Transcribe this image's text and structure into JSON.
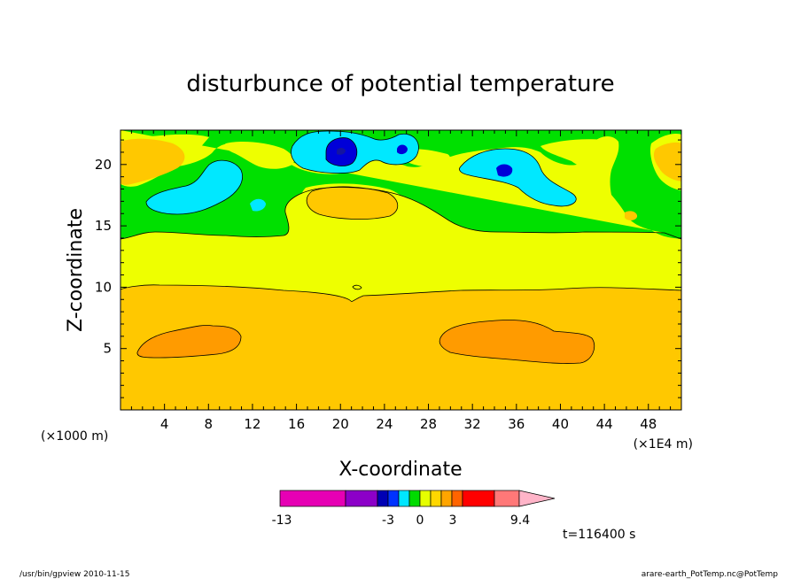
{
  "chart_data": {
    "type": "heatmap",
    "title": "disturbunce of potential temperature",
    "xlabel": "X-coordinate",
    "ylabel": "Z-coordinate",
    "x_unit_left": "(×1000 m)",
    "x_unit_right": "(×1E4 m)",
    "xlim": [
      0,
      51
    ],
    "ylim": [
      0,
      22.8
    ],
    "x_ticks": [
      "4",
      "8",
      "12",
      "16",
      "20",
      "24",
      "28",
      "32",
      "36",
      "40",
      "44",
      "48"
    ],
    "x_tick_values": [
      4,
      8,
      12,
      16,
      20,
      24,
      28,
      32,
      36,
      40,
      44,
      48
    ],
    "y_ticks": [
      "5",
      "10",
      "15",
      "20"
    ],
    "y_tick_values": [
      5,
      10,
      15,
      20
    ],
    "colorbar": {
      "labels": [
        "-13",
        "-3",
        "0",
        "3",
        "9.4"
      ],
      "colors": [
        "#e600b4",
        "#8c00c8",
        "#0000b4",
        "#0032ff",
        "#00e6ff",
        "#00dc00",
        "#e6ff00",
        "#ffd700",
        "#ffa500",
        "#ff6400",
        "#ff0000",
        "#ff7878",
        "#ffb4c8"
      ]
    },
    "field_colors": {
      "lowest": "#ffc800",
      "low_blob": "#ff9b00",
      "mid": "#eeff00",
      "upper": "#00e000",
      "cyan": "#00e8ff",
      "blue": "#0000d8",
      "deep_blue": "#1414a0"
    },
    "time_label": "t=116400 s"
  },
  "footer": {
    "left": "/usr/bin/gpview  2010-11-15",
    "right": "arare-earth_PotTemp.nc@PotTemp"
  }
}
